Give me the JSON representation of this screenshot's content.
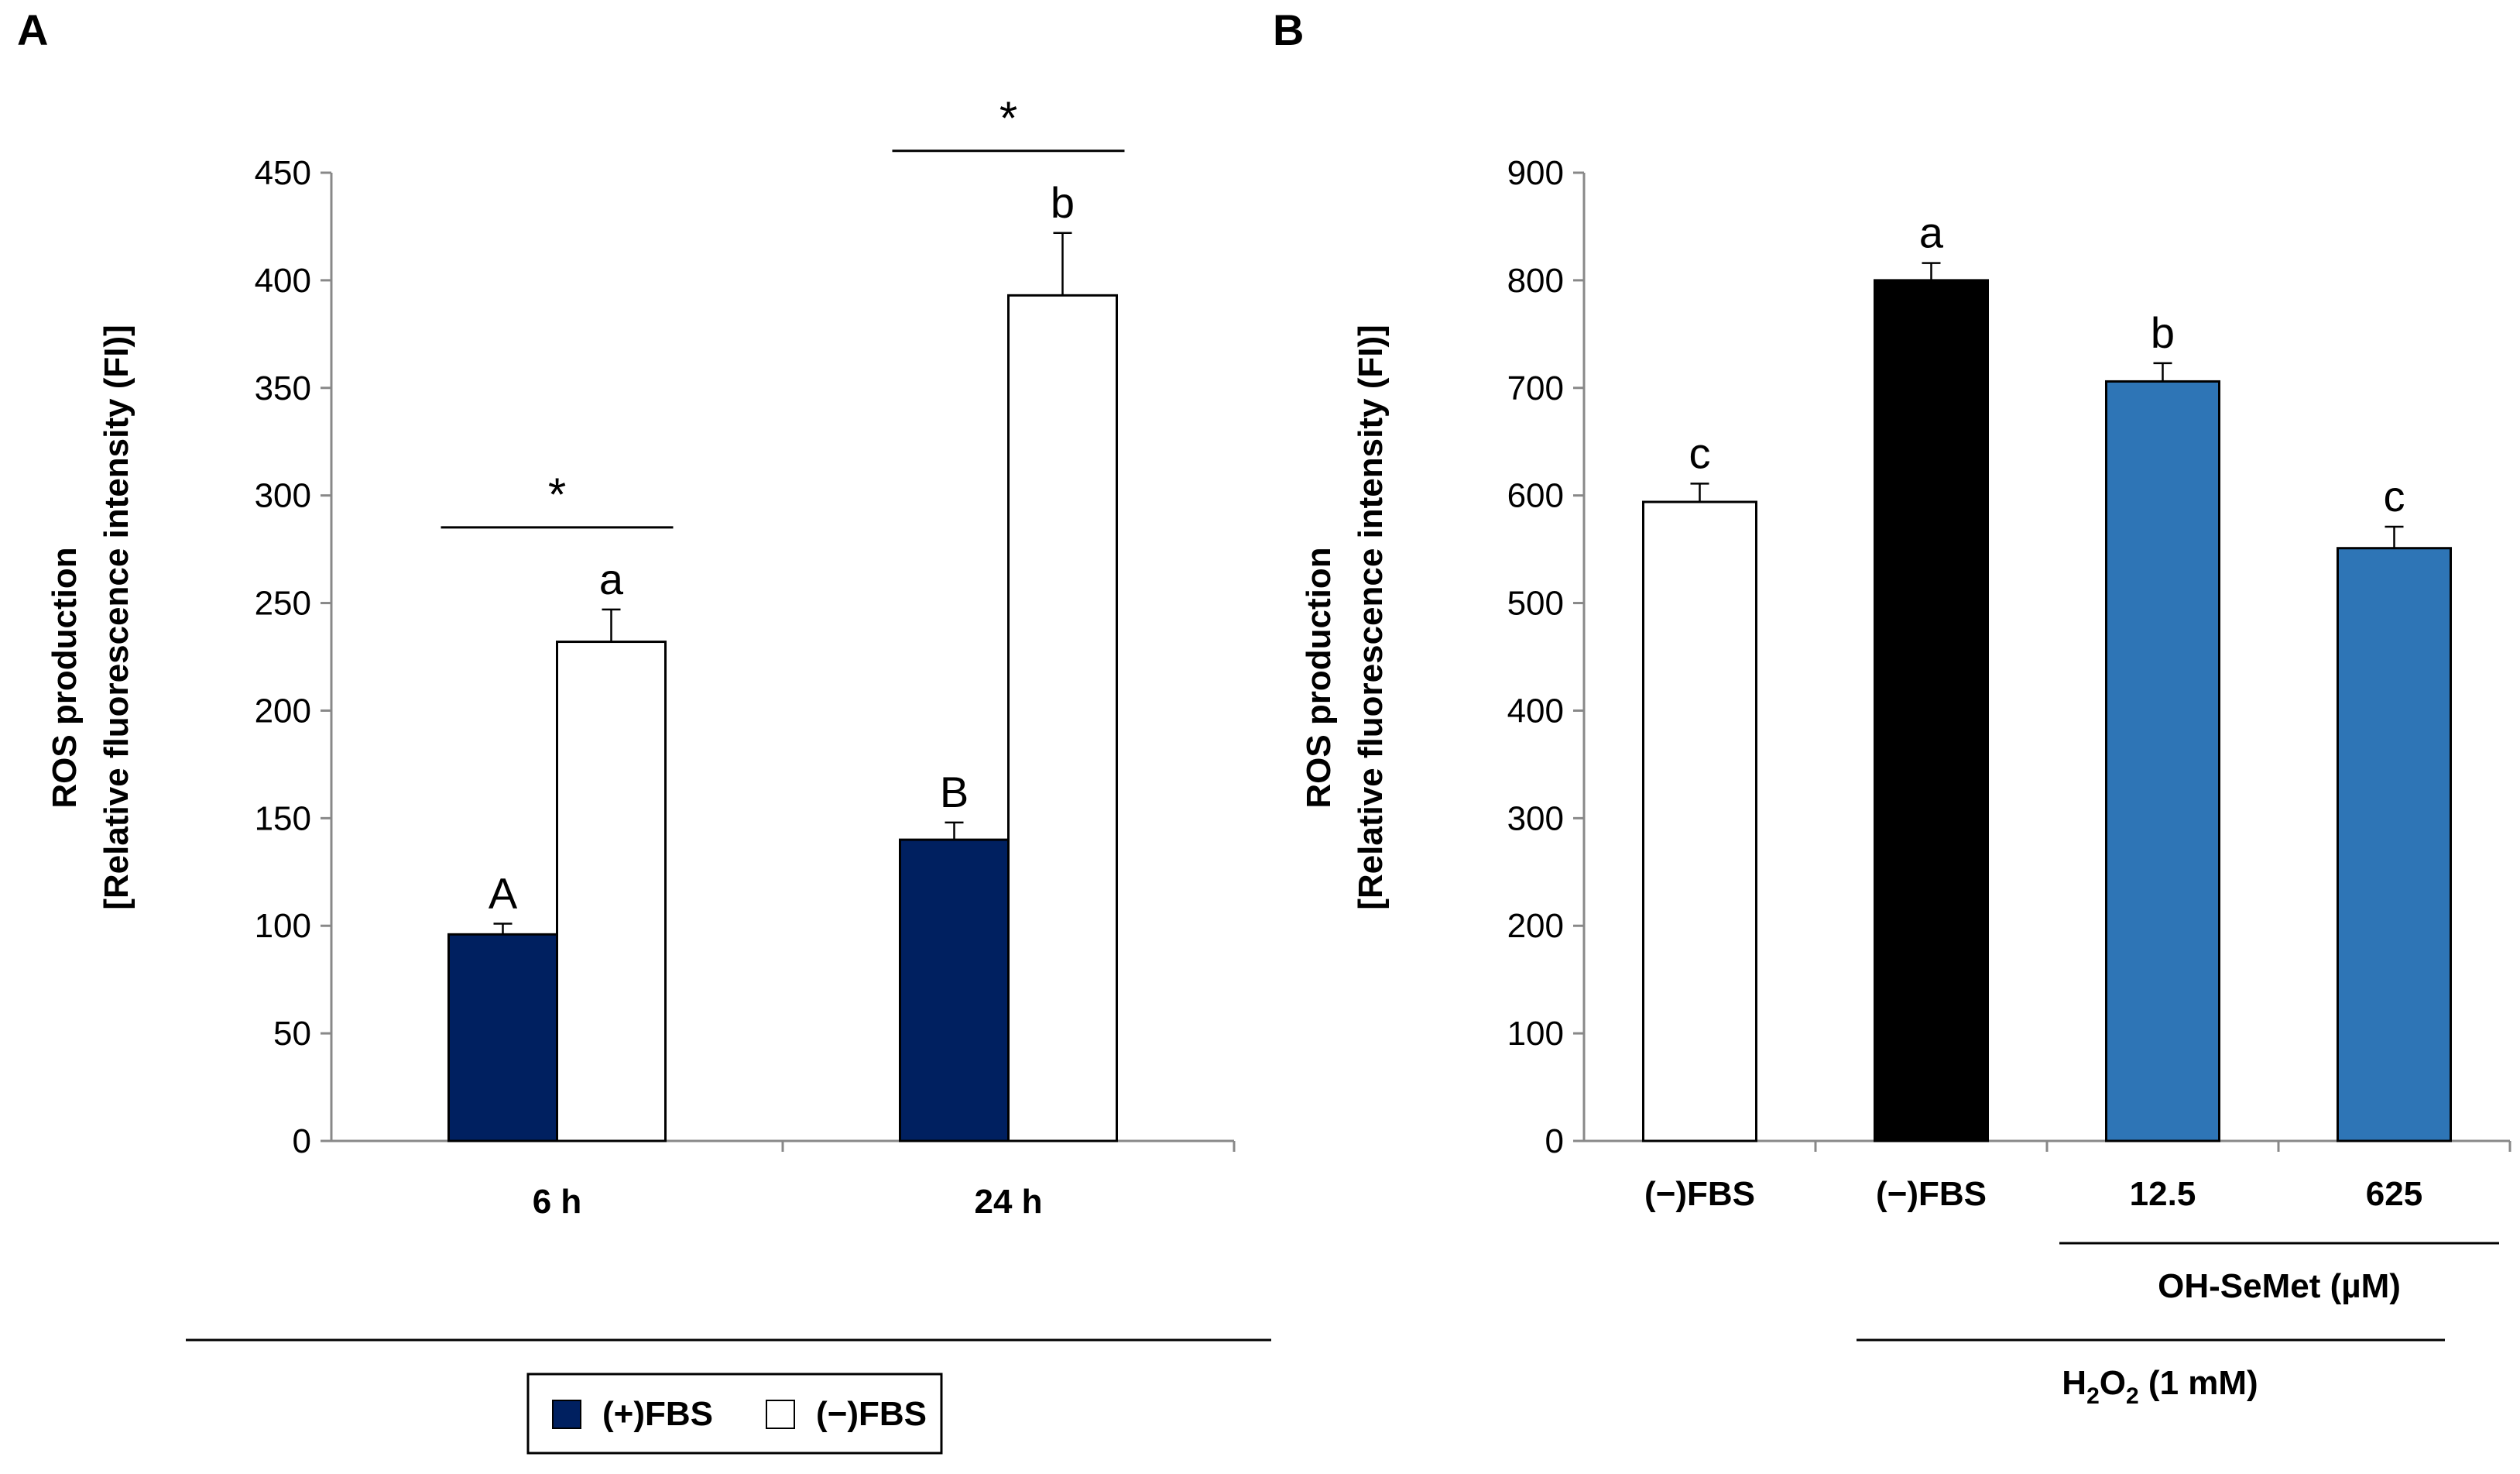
{
  "colors": {
    "navy": "#002060",
    "white": "#ffffff",
    "black": "#000000",
    "blue": "#2E75B6"
  },
  "chart_data": [
    {
      "panel": "A",
      "type": "bar",
      "ylabel_line1": "ROS production",
      "ylabel_line2": "[Relative fluorescence intensity (FI)]",
      "ylim": [
        0,
        450
      ],
      "yticks": [
        0,
        50,
        100,
        150,
        200,
        250,
        300,
        350,
        400,
        450
      ],
      "categories": [
        "6 h",
        "24 h"
      ],
      "series": [
        {
          "name": "(+)FBS",
          "color": "#002060",
          "values": [
            96,
            140
          ],
          "errors": [
            5,
            8
          ],
          "letters": [
            "A",
            "B"
          ]
        },
        {
          "name": "(−)FBS",
          "color": "#ffffff",
          "values": [
            232,
            393
          ],
          "errors": [
            15,
            29
          ],
          "letters": [
            "a",
            "b"
          ]
        }
      ],
      "significance": [
        "*",
        "*"
      ],
      "legend": [
        "(+)FBS",
        "(−)FBS"
      ]
    },
    {
      "panel": "B",
      "type": "bar",
      "ylabel_line1": "ROS production",
      "ylabel_line2": "[Relative fluorescence intensity (FI)]",
      "ylim": [
        0,
        900
      ],
      "yticks": [
        0,
        100,
        200,
        300,
        400,
        500,
        600,
        700,
        800,
        900
      ],
      "categories": [
        "(−)FBS",
        "(−)FBS",
        "12.5",
        "625"
      ],
      "values": [
        594,
        800,
        706,
        551
      ],
      "errors": [
        17,
        16,
        17,
        20
      ],
      "colors": [
        "#ffffff",
        "#000000",
        "#2E75B6",
        "#2E75B6"
      ],
      "letters": [
        "c",
        "a",
        "b",
        "c"
      ],
      "group_label_1": "OH-SeMet (µM)",
      "group_label_2_main": "H",
      "group_label_2_sub1": "2",
      "group_label_2_mid": "O",
      "group_label_2_sub2": "2",
      "group_label_2_tail": " (1 mM)"
    }
  ]
}
